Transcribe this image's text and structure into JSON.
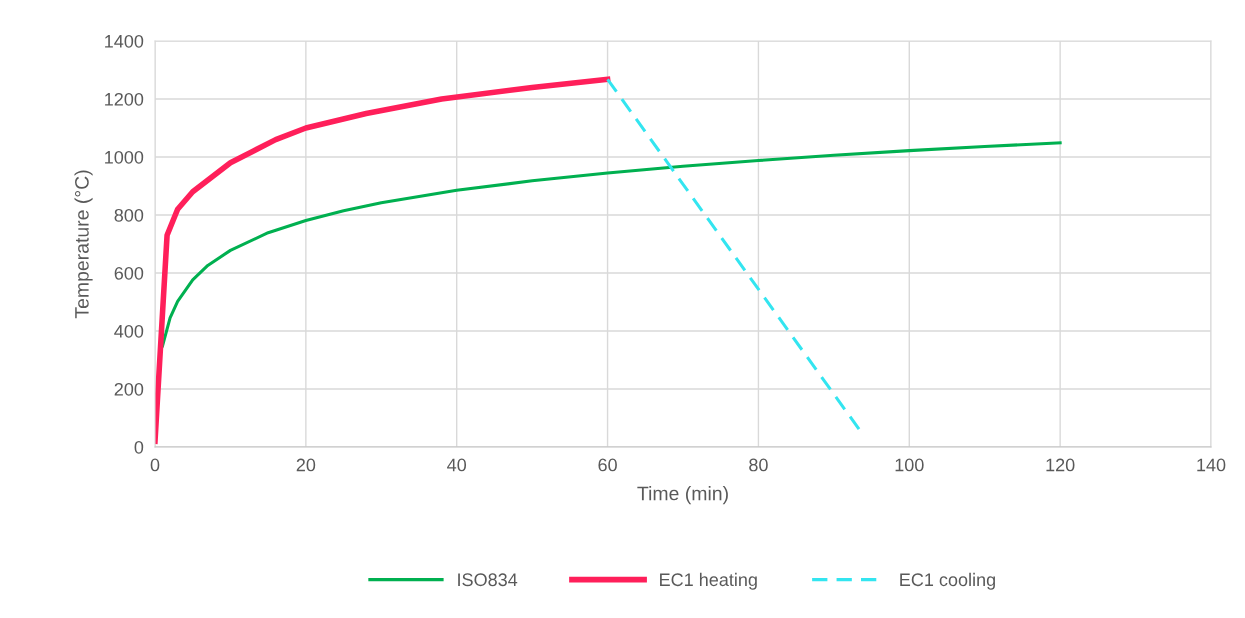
{
  "chart_data": {
    "type": "line",
    "xlabel": "Time (min)",
    "ylabel": "Temperature (°C)",
    "xlim": [
      0,
      140
    ],
    "xticks": [
      0,
      20,
      40,
      60,
      80,
      100,
      120,
      140
    ],
    "ylim": [
      0,
      1400
    ],
    "yticks": [
      0,
      200,
      400,
      600,
      800,
      1000,
      1200,
      1400
    ],
    "grid": true,
    "legend": "bottom",
    "marker": "none",
    "series": [
      {
        "name": "ISO834",
        "color": "#00b050",
        "line_style": "solid",
        "x": [
          1,
          2,
          3,
          5,
          7,
          10,
          15,
          20,
          25,
          30,
          40,
          50,
          60,
          70,
          80,
          90,
          100,
          110,
          120
        ],
        "values": [
          349,
          445,
          502,
          576,
          626,
          678,
          739,
          781,
          815,
          842,
          885,
          918,
          945,
          968,
          988,
          1006,
          1022,
          1036,
          1049
        ]
      },
      {
        "name": "EC1 heating",
        "color": "#ff1f5a",
        "line_style": "solid",
        "x": [
          0,
          1.6,
          3,
          5,
          7.5,
          10,
          13,
          16,
          20,
          28,
          38,
          50,
          60
        ],
        "values": [
          20,
          730,
          820,
          880,
          930,
          980,
          1020,
          1060,
          1100,
          1150,
          1200,
          1240,
          1268
        ]
      },
      {
        "name": "EC1 cooling",
        "color": "#33e5f0",
        "line_style": "dashed",
        "x": [
          60,
          93.6
        ],
        "values": [
          1268,
          52
        ]
      }
    ]
  }
}
